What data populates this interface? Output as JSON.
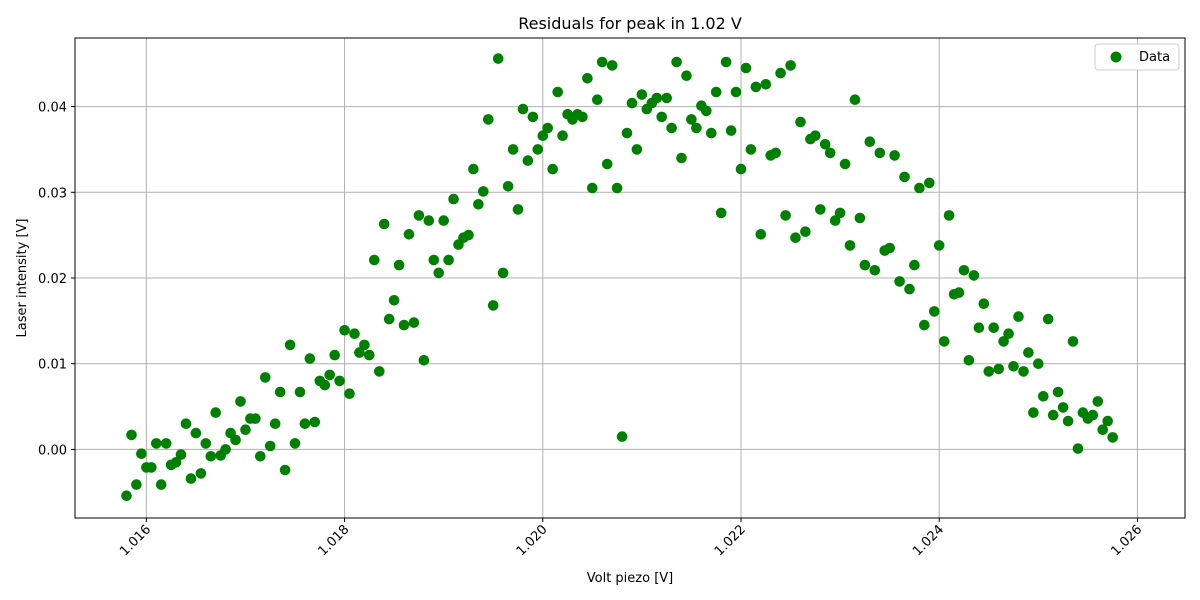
{
  "chart_data": {
    "type": "scatter",
    "title": "Residuals for peak in 1.02 V",
    "xlabel": "Volt piezo [V]",
    "ylabel": "Laser intensity [V]",
    "xlim": [
      1.01528,
      1.02648
    ],
    "ylim": [
      -0.008,
      0.048
    ],
    "xticks": [
      1.016,
      1.018,
      1.02,
      1.022,
      1.024,
      1.026
    ],
    "xtick_labels": [
      "1.016",
      "1.018",
      "1.020",
      "1.022",
      "1.024",
      "1.026"
    ],
    "yticks": [
      0.0,
      0.01,
      0.02,
      0.03,
      0.04
    ],
    "ytick_labels": [
      "0.00",
      "0.01",
      "0.02",
      "0.03",
      "0.04"
    ],
    "grid": true,
    "legend_position": "top-right",
    "series": [
      {
        "name": "Data",
        "color": "#008000",
        "points": [
          [
            1.0158,
            -0.0054
          ],
          [
            1.01585,
            0.0017
          ],
          [
            1.0159,
            -0.0041
          ],
          [
            1.01595,
            -0.0005
          ],
          [
            1.016,
            -0.0021
          ],
          [
            1.01605,
            -0.0021
          ],
          [
            1.0161,
            0.0007
          ],
          [
            1.01615,
            -0.0041
          ],
          [
            1.0162,
            0.0007
          ],
          [
            1.01625,
            -0.0018
          ],
          [
            1.0163,
            -0.0015
          ],
          [
            1.01635,
            -0.0006
          ],
          [
            1.0164,
            0.003
          ],
          [
            1.01645,
            -0.0034
          ],
          [
            1.0165,
            0.0019
          ],
          [
            1.01655,
            -0.0028
          ],
          [
            1.0166,
            0.0007
          ],
          [
            1.01665,
            -0.0008
          ],
          [
            1.0167,
            0.0043
          ],
          [
            1.01675,
            -0.0007
          ],
          [
            1.0168,
            0.0
          ],
          [
            1.01685,
            0.0019
          ],
          [
            1.0169,
            0.0011
          ],
          [
            1.01695,
            0.0056
          ],
          [
            1.017,
            0.0023
          ],
          [
            1.01705,
            0.0036
          ],
          [
            1.0171,
            0.0036
          ],
          [
            1.01715,
            -0.0008
          ],
          [
            1.0172,
            0.0084
          ],
          [
            1.01725,
            0.0004
          ],
          [
            1.0173,
            0.003
          ],
          [
            1.01735,
            0.0067
          ],
          [
            1.0174,
            -0.0024
          ],
          [
            1.01745,
            0.0122
          ],
          [
            1.0175,
            0.0007
          ],
          [
            1.01755,
            0.0067
          ],
          [
            1.0176,
            0.003
          ],
          [
            1.01765,
            0.0106
          ],
          [
            1.0177,
            0.0032
          ],
          [
            1.01775,
            0.008
          ],
          [
            1.0178,
            0.0075
          ],
          [
            1.01785,
            0.0087
          ],
          [
            1.0179,
            0.011
          ],
          [
            1.01795,
            0.008
          ],
          [
            1.018,
            0.0139
          ],
          [
            1.01805,
            0.0065
          ],
          [
            1.0181,
            0.0135
          ],
          [
            1.01815,
            0.0113
          ],
          [
            1.0182,
            0.0122
          ],
          [
            1.01825,
            0.011
          ],
          [
            1.0183,
            0.0221
          ],
          [
            1.01835,
            0.0091
          ],
          [
            1.0184,
            0.0263
          ],
          [
            1.01845,
            0.0152
          ],
          [
            1.0185,
            0.0174
          ],
          [
            1.01855,
            0.0215
          ],
          [
            1.0186,
            0.0145
          ],
          [
            1.01865,
            0.0251
          ],
          [
            1.0187,
            0.0148
          ],
          [
            1.01875,
            0.0273
          ],
          [
            1.0188,
            0.0104
          ],
          [
            1.01885,
            0.0267
          ],
          [
            1.0189,
            0.0221
          ],
          [
            1.01895,
            0.0206
          ],
          [
            1.019,
            0.0267
          ],
          [
            1.01905,
            0.0221
          ],
          [
            1.0191,
            0.0292
          ],
          [
            1.01915,
            0.0239
          ],
          [
            1.0192,
            0.0247
          ],
          [
            1.01925,
            0.025
          ],
          [
            1.0193,
            0.0327
          ],
          [
            1.01935,
            0.0286
          ],
          [
            1.0194,
            0.0301
          ],
          [
            1.01945,
            0.0385
          ],
          [
            1.0195,
            0.0168
          ],
          [
            1.01955,
            0.0456
          ],
          [
            1.0196,
            0.0206
          ],
          [
            1.01965,
            0.0307
          ],
          [
            1.0197,
            0.035
          ],
          [
            1.01975,
            0.028
          ],
          [
            1.0198,
            0.0397
          ],
          [
            1.01985,
            0.0337
          ],
          [
            1.0199,
            0.0388
          ],
          [
            1.01995,
            0.035
          ],
          [
            1.02,
            0.0366
          ],
          [
            1.02005,
            0.0375
          ],
          [
            1.0201,
            0.0327
          ],
          [
            1.02015,
            0.0417
          ],
          [
            1.0202,
            0.0366
          ],
          [
            1.02025,
            0.0391
          ],
          [
            1.0203,
            0.0385
          ],
          [
            1.02035,
            0.0391
          ],
          [
            1.0204,
            0.0388
          ],
          [
            1.02045,
            0.0433
          ],
          [
            1.0205,
            0.0305
          ],
          [
            1.02055,
            0.0408
          ],
          [
            1.0206,
            0.0452
          ],
          [
            1.02065,
            0.0333
          ],
          [
            1.0207,
            0.0448
          ],
          [
            1.02075,
            0.0305
          ],
          [
            1.0208,
            0.0015
          ],
          [
            1.02085,
            0.0369
          ],
          [
            1.0209,
            0.0404
          ],
          [
            1.02095,
            0.035
          ],
          [
            1.021,
            0.0414
          ],
          [
            1.02105,
            0.0397
          ],
          [
            1.0211,
            0.0404
          ],
          [
            1.02115,
            0.041
          ],
          [
            1.0212,
            0.0388
          ],
          [
            1.02125,
            0.041
          ],
          [
            1.0213,
            0.0375
          ],
          [
            1.02135,
            0.0452
          ],
          [
            1.0214,
            0.034
          ],
          [
            1.02145,
            0.0436
          ],
          [
            1.0215,
            0.0385
          ],
          [
            1.02155,
            0.0375
          ],
          [
            1.0216,
            0.0401
          ],
          [
            1.02165,
            0.0395
          ],
          [
            1.0217,
            0.0369
          ],
          [
            1.02175,
            0.0417
          ],
          [
            1.0218,
            0.0276
          ],
          [
            1.02185,
            0.0452
          ],
          [
            1.0219,
            0.0372
          ],
          [
            1.02195,
            0.0417
          ],
          [
            1.022,
            0.0327
          ],
          [
            1.02205,
            0.0445
          ],
          [
            1.0221,
            0.035
          ],
          [
            1.02215,
            0.0423
          ],
          [
            1.0222,
            0.0251
          ],
          [
            1.02225,
            0.0426
          ],
          [
            1.0223,
            0.0343
          ],
          [
            1.02235,
            0.0346
          ],
          [
            1.0224,
            0.0439
          ],
          [
            1.02245,
            0.0273
          ],
          [
            1.0225,
            0.0448
          ],
          [
            1.02255,
            0.0247
          ],
          [
            1.0226,
            0.0382
          ],
          [
            1.02265,
            0.0254
          ],
          [
            1.0227,
            0.0362
          ],
          [
            1.02275,
            0.0366
          ],
          [
            1.0228,
            0.028
          ],
          [
            1.02285,
            0.0356
          ],
          [
            1.0229,
            0.0346
          ],
          [
            1.02295,
            0.0267
          ],
          [
            1.023,
            0.0276
          ],
          [
            1.02305,
            0.0333
          ],
          [
            1.0231,
            0.0238
          ],
          [
            1.02315,
            0.0408
          ],
          [
            1.0232,
            0.027
          ],
          [
            1.02325,
            0.0215
          ],
          [
            1.0233,
            0.0359
          ],
          [
            1.02335,
            0.0209
          ],
          [
            1.0234,
            0.0346
          ],
          [
            1.02345,
            0.0232
          ],
          [
            1.0235,
            0.0235
          ],
          [
            1.02355,
            0.0343
          ],
          [
            1.0236,
            0.0196
          ],
          [
            1.02365,
            0.0318
          ],
          [
            1.0237,
            0.0187
          ],
          [
            1.02375,
            0.0215
          ],
          [
            1.0238,
            0.0305
          ],
          [
            1.02385,
            0.0145
          ],
          [
            1.0239,
            0.0311
          ],
          [
            1.02395,
            0.0161
          ],
          [
            1.024,
            0.0238
          ],
          [
            1.02405,
            0.0126
          ],
          [
            1.0241,
            0.0273
          ],
          [
            1.02415,
            0.0181
          ],
          [
            1.0242,
            0.0183
          ],
          [
            1.02425,
            0.0209
          ],
          [
            1.0243,
            0.0104
          ],
          [
            1.02435,
            0.0203
          ],
          [
            1.0244,
            0.0142
          ],
          [
            1.02445,
            0.017
          ],
          [
            1.0245,
            0.0091
          ],
          [
            1.02455,
            0.0142
          ],
          [
            1.0246,
            0.0094
          ],
          [
            1.02465,
            0.0126
          ],
          [
            1.0247,
            0.0135
          ],
          [
            1.02475,
            0.0097
          ],
          [
            1.0248,
            0.0155
          ],
          [
            1.02485,
            0.0091
          ],
          [
            1.0249,
            0.0113
          ],
          [
            1.02495,
            0.0043
          ],
          [
            1.025,
            0.01
          ],
          [
            1.02505,
            0.0062
          ],
          [
            1.0251,
            0.0152
          ],
          [
            1.02515,
            0.004
          ],
          [
            1.0252,
            0.0067
          ],
          [
            1.02525,
            0.0049
          ],
          [
            1.0253,
            0.0033
          ],
          [
            1.02535,
            0.0126
          ],
          [
            1.0254,
            0.0001
          ],
          [
            1.02545,
            0.0043
          ],
          [
            1.0255,
            0.0036
          ],
          [
            1.02555,
            0.004
          ],
          [
            1.0256,
            0.0056
          ],
          [
            1.02565,
            0.0023
          ],
          [
            1.0257,
            0.0033
          ],
          [
            1.02575,
            0.0014
          ]
        ]
      }
    ]
  }
}
